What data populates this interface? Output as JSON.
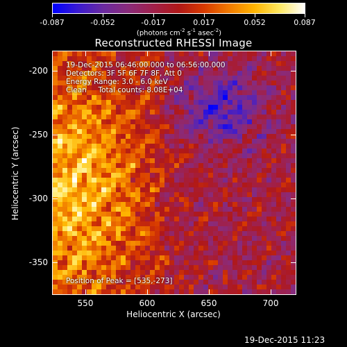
{
  "colorbar": {
    "colors": [
      "#0000ff",
      "#3a1ad0",
      "#6a2aa0",
      "#8a2b7a",
      "#a0204a",
      "#b01818",
      "#d83a00",
      "#f07a00",
      "#ffb400",
      "#ffe860",
      "#ffffff"
    ],
    "ticks": [
      "-0.087",
      "-0.052",
      "-0.017",
      "0.017",
      "0.052",
      "0.087"
    ],
    "units_main": "(photons cm",
    "units_sup1": "-2",
    "units_s": " s",
    "units_sup2": "-1",
    "units_asec": " asec",
    "units_sup3": "-2",
    "units_end": ")"
  },
  "title": "Reconstructed RHESSI Image",
  "overlay": {
    "line1": "19-Dec-2015 06:46:00.000 to 06:56:00.000",
    "line2": "Detectors: 3F 5F 6F 7F 8F, Att 0",
    "line3": "Energy Range: 3.0 - 6.0 keV",
    "line4": "Clean     Total counts: 8.08E+04",
    "peak": "Position of Peak = [535,-273]"
  },
  "axes": {
    "xlabel": "Heliocentric X (arcsec)",
    "ylabel": "Heliocentric Y (arcsec)",
    "xticks": [
      "550",
      "600",
      "650",
      "700"
    ],
    "yticks": [
      "-200",
      "-250",
      "-300",
      "-350"
    ]
  },
  "footer": "19-Dec-2015 11:23"
}
